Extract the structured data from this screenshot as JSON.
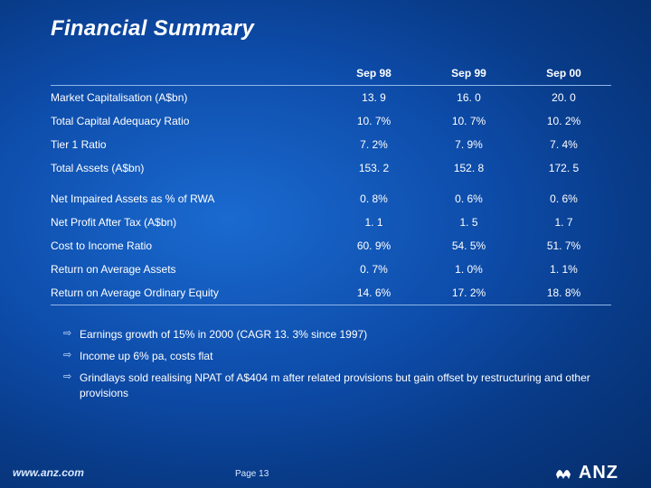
{
  "title": "Financial Summary",
  "table": {
    "columns": [
      "",
      "Sep 98",
      "Sep 99",
      "Sep 00"
    ],
    "rows": [
      {
        "label": "Market Capitalisation (A$bn)",
        "v": [
          "13. 9",
          "16. 0",
          "20. 0"
        ],
        "spacer": false
      },
      {
        "label": "Total Capital Adequacy Ratio",
        "v": [
          "10. 7%",
          "10. 7%",
          "10. 2%"
        ],
        "spacer": false
      },
      {
        "label": "Tier 1 Ratio",
        "v": [
          "7. 2%",
          "7. 9%",
          "7. 4%"
        ],
        "spacer": false
      },
      {
        "label": "Total Assets (A$bn)",
        "v": [
          "153. 2",
          "152. 8",
          "172. 5"
        ],
        "spacer": false
      },
      {
        "label": "Net Impaired Assets as % of RWA",
        "v": [
          "0. 8%",
          "0. 6%",
          "0. 6%"
        ],
        "spacer": true
      },
      {
        "label": "Net Profit After Tax (A$bn)",
        "v": [
          "1. 1",
          "1. 5",
          "1. 7"
        ],
        "spacer": false
      },
      {
        "label": "Cost to Income Ratio",
        "v": [
          "60. 9%",
          "54. 5%",
          "51. 7%"
        ],
        "spacer": false
      },
      {
        "label": "Return on Average Assets",
        "v": [
          "0. 7%",
          "1. 0%",
          "1. 1%"
        ],
        "spacer": false
      },
      {
        "label": "Return on Average Ordinary Equity",
        "v": [
          "14. 6%",
          "17. 2%",
          "18. 8%"
        ],
        "spacer": false
      }
    ],
    "header_border_color": "#8fb6e8",
    "font_size": 12,
    "text_color": "#ffffff"
  },
  "bullets": [
    "Earnings growth of 15% in 2000 (CAGR 13. 3% since 1997)",
    "Income up 6% pa, costs flat",
    "Grindlays sold realising NPAT of A$404 m after related provisions but gain offset by restructuring and other provisions"
  ],
  "footer": {
    "url": "www.anz.com",
    "page": "Page 13",
    "logo_text": "ANZ"
  },
  "styling": {
    "background_gradient": [
      "#1a6ad0",
      "#0d4ba8",
      "#083a86",
      "#062d6a"
    ],
    "title_fontsize": 24,
    "title_color": "#ffffff",
    "body_font": "Verdana",
    "bullet_marker": "⇨"
  }
}
